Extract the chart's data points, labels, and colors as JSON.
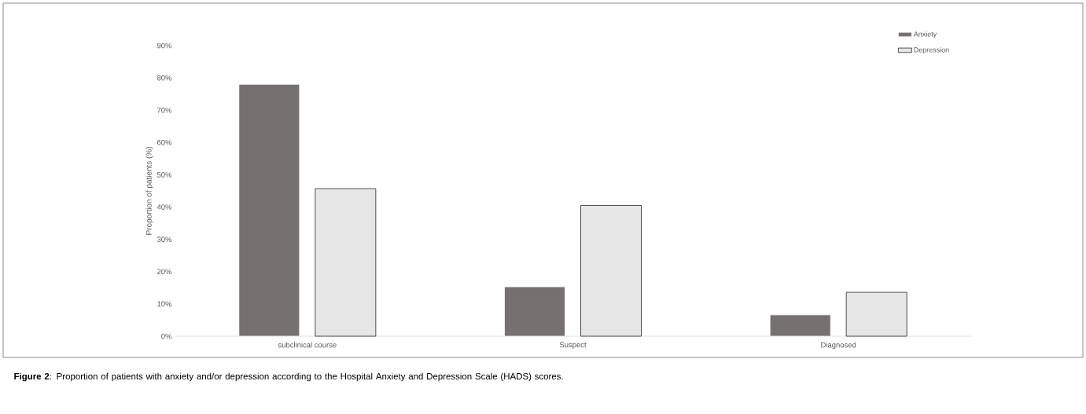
{
  "chart_data": {
    "type": "bar",
    "ylabel": "Proportion of patients (%)",
    "categories": [
      "subclinical course",
      "Suspect",
      "Diagnosed"
    ],
    "series": [
      {
        "name": "Anxiety",
        "color": "#767171",
        "values": [
          78,
          15.3,
          6.6
        ]
      },
      {
        "name": "Depression",
        "color": "#e7e6e6",
        "values": [
          45.7,
          40.5,
          13.6
        ]
      }
    ],
    "ylim": [
      0,
      90
    ],
    "yticks": [
      {
        "value": 0,
        "label": "0%"
      },
      {
        "value": 10,
        "label": "10%"
      },
      {
        "value": 20,
        "label": "20%"
      },
      {
        "value": 30,
        "label": "30%"
      },
      {
        "value": 40,
        "label": "40%"
      },
      {
        "value": 50,
        "label": "50%"
      },
      {
        "value": 60,
        "label": "60%"
      },
      {
        "value": 70,
        "label": "70%"
      },
      {
        "value": 80,
        "label": "80%"
      },
      {
        "value": 90,
        "label": "90%"
      }
    ],
    "legend": "top right",
    "annotations": [
      "**Figure 2**: Proportion of patients with anxiety and/or depression according to the Hospital Anxiety and Depression Scale (HADS) scores."
    ]
  }
}
